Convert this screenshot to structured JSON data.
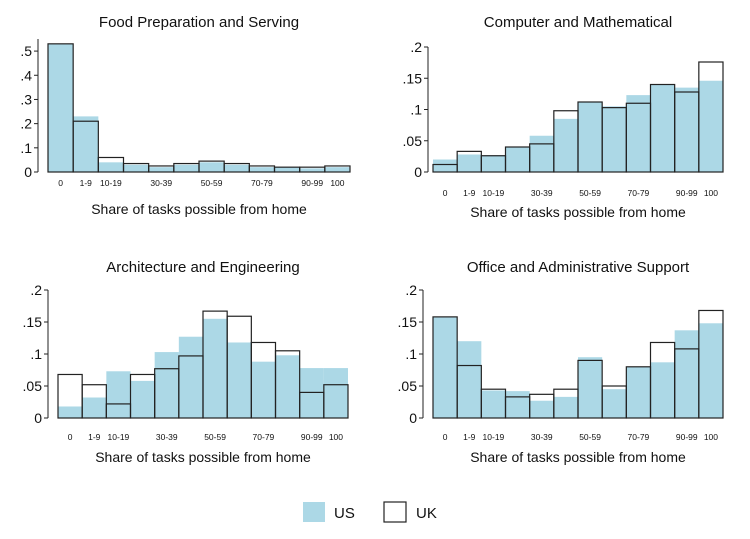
{
  "chart_data": [
    {
      "type": "bar",
      "title": "Food Preparation and Serving",
      "xlabel": "Share of tasks possible from home",
      "ylabel": "",
      "ylim": [
        0,
        0.55
      ],
      "yticks": [
        0,
        0.1,
        0.2,
        0.3,
        0.4,
        0.5
      ],
      "ytick_labels": [
        "0",
        ".1",
        ".2",
        ".3",
        ".4",
        ".5"
      ],
      "categories": [
        "0",
        "1-9",
        "10-19",
        "20-29",
        "30-39",
        "40-49",
        "50-59",
        "60-69",
        "70-79",
        "80-89",
        "90-99",
        "100"
      ],
      "category_labels_shown": [
        "0",
        "1-9",
        "10-19",
        "",
        "30-39",
        "",
        "50-59",
        "",
        "70-79",
        "",
        "90-99",
        "100"
      ],
      "series": [
        {
          "name": "US",
          "values": [
            0.53,
            0.23,
            0.04,
            0.03,
            0.02,
            0.03,
            0.04,
            0.03,
            0.02,
            0.02,
            0.015,
            0.02
          ]
        },
        {
          "name": "UK",
          "values": [
            0.53,
            0.21,
            0.06,
            0.035,
            0.025,
            0.035,
            0.045,
            0.035,
            0.025,
            0.02,
            0.02,
            0.025
          ]
        }
      ]
    },
    {
      "type": "bar",
      "title": "Computer and Mathematical",
      "xlabel": "Share of tasks possible from home",
      "ylabel": "",
      "ylim": [
        0,
        0.2
      ],
      "yticks": [
        0,
        0.05,
        0.1,
        0.15,
        0.2
      ],
      "ytick_labels": [
        "0",
        ".05",
        ".1",
        ".15",
        ".2"
      ],
      "categories": [
        "0",
        "1-9",
        "10-19",
        "20-29",
        "30-39",
        "40-49",
        "50-59",
        "60-69",
        "70-79",
        "80-89",
        "90-99",
        "100"
      ],
      "category_labels_shown": [
        "0",
        "1-9",
        "10-19",
        "",
        "30-39",
        "",
        "50-59",
        "",
        "70-79",
        "",
        "90-99",
        "100"
      ],
      "series": [
        {
          "name": "US",
          "values": [
            0.02,
            0.028,
            0.027,
            0.04,
            0.058,
            0.085,
            0.112,
            0.105,
            0.123,
            0.14,
            0.135,
            0.146
          ]
        },
        {
          "name": "UK",
          "values": [
            0.012,
            0.033,
            0.026,
            0.04,
            0.045,
            0.098,
            0.112,
            0.103,
            0.11,
            0.14,
            0.128,
            0.176
          ]
        }
      ]
    },
    {
      "type": "bar",
      "title": "Architecture and Engineering",
      "xlabel": "Share of tasks possible from home",
      "ylabel": "",
      "ylim": [
        0,
        0.2
      ],
      "yticks": [
        0,
        0.05,
        0.1,
        0.15,
        0.2
      ],
      "ytick_labels": [
        "0",
        ".05",
        ".1",
        ".15",
        ".2"
      ],
      "categories": [
        "0",
        "1-9",
        "10-19",
        "20-29",
        "30-39",
        "40-49",
        "50-59",
        "60-69",
        "70-79",
        "80-89",
        "90-99",
        "100"
      ],
      "category_labels_shown": [
        "0",
        "1-9",
        "10-19",
        "",
        "30-39",
        "",
        "50-59",
        "",
        "70-79",
        "",
        "90-99",
        "100"
      ],
      "series": [
        {
          "name": "US",
          "values": [
            0.018,
            0.032,
            0.073,
            0.058,
            0.103,
            0.127,
            0.155,
            0.118,
            0.088,
            0.098,
            0.078,
            0.078
          ]
        },
        {
          "name": "UK",
          "values": [
            0.068,
            0.052,
            0.022,
            0.068,
            0.077,
            0.097,
            0.167,
            0.159,
            0.118,
            0.105,
            0.04,
            0.052
          ]
        }
      ]
    },
    {
      "type": "bar",
      "title": "Office and Administrative Support",
      "xlabel": "Share of tasks possible from home",
      "ylabel": "",
      "ylim": [
        0,
        0.2
      ],
      "yticks": [
        0,
        0.05,
        0.1,
        0.15,
        0.2
      ],
      "ytick_labels": [
        "0",
        ".05",
        ".1",
        ".15",
        ".2"
      ],
      "categories": [
        "0",
        "1-9",
        "10-19",
        "20-29",
        "30-39",
        "40-49",
        "50-59",
        "60-69",
        "70-79",
        "80-89",
        "90-99",
        "100"
      ],
      "category_labels_shown": [
        "0",
        "1-9",
        "10-19",
        "",
        "30-39",
        "",
        "50-59",
        "",
        "70-79",
        "",
        "90-99",
        "100"
      ],
      "series": [
        {
          "name": "US",
          "values": [
            0.158,
            0.12,
            0.043,
            0.042,
            0.027,
            0.033,
            0.095,
            0.045,
            0.08,
            0.087,
            0.137,
            0.148
          ]
        },
        {
          "name": "UK",
          "values": [
            0.158,
            0.082,
            0.045,
            0.033,
            0.037,
            0.045,
            0.09,
            0.05,
            0.08,
            0.118,
            0.108,
            0.168
          ]
        }
      ]
    }
  ],
  "legend": {
    "placement": "bottom-center",
    "items": [
      {
        "label": "US",
        "color": "#acd8e6",
        "style": "filled"
      },
      {
        "label": "UK",
        "color": "#222222",
        "style": "outline"
      }
    ]
  },
  "colors": {
    "us_fill": "#acd8e6",
    "uk_outline": "#222222",
    "axis": "#222222"
  }
}
